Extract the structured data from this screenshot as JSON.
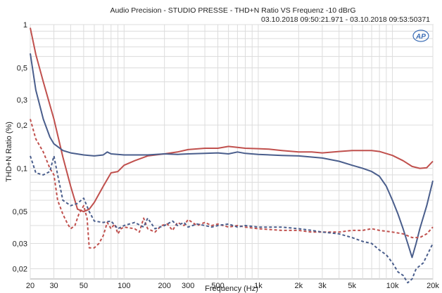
{
  "header": {
    "title": "Audio Precision - STUDIO PRESSE - THD+N Ratio VS Frequenz -10 dBrG",
    "timestamp": "03.10.2018 09:50:21.971 - 03.10.2018 09:53:50371"
  },
  "logo": "AP",
  "chart_data": {
    "type": "line",
    "title": "Audio Precision - STUDIO PRESSE - THD+N Ratio VS Frequenz -10 dBrG",
    "xlabel": "Frequency (Hz)",
    "ylabel": "THD+N Ratio (%)",
    "x_scale": "log",
    "y_scale": "log",
    "xlim": [
      20,
      20000
    ],
    "ylim": [
      0.017,
      1
    ],
    "x_ticks": [
      {
        "v": 20,
        "label": "20"
      },
      {
        "v": 30,
        "label": "30"
      },
      {
        "v": 50,
        "label": "50"
      },
      {
        "v": 100,
        "label": "100"
      },
      {
        "v": 200,
        "label": "200"
      },
      {
        "v": 300,
        "label": "300"
      },
      {
        "v": 500,
        "label": "500"
      },
      {
        "v": 1000,
        "label": "1k"
      },
      {
        "v": 2000,
        "label": "2k"
      },
      {
        "v": 3000,
        "label": "3k"
      },
      {
        "v": 5000,
        "label": "5k"
      },
      {
        "v": 10000,
        "label": "10k"
      },
      {
        "v": 20000,
        "label": "20k"
      }
    ],
    "y_ticks": [
      {
        "v": 1,
        "label": "1"
      },
      {
        "v": 0.5,
        "label": "0,5"
      },
      {
        "v": 0.3,
        "label": "0,3"
      },
      {
        "v": 0.2,
        "label": "0,2"
      },
      {
        "v": 0.1,
        "label": "0,1"
      },
      {
        "v": 0.05,
        "label": "0,05"
      },
      {
        "v": 0.03,
        "label": "0,03"
      },
      {
        "v": 0.02,
        "label": "0,02"
      }
    ],
    "grid": true,
    "series": [
      {
        "color": "#c0504d",
        "dash": "solid",
        "points": [
          [
            20,
            0.95
          ],
          [
            22,
            0.62
          ],
          [
            25,
            0.4
          ],
          [
            30,
            0.22
          ],
          [
            35,
            0.12
          ],
          [
            40,
            0.075
          ],
          [
            45,
            0.052
          ],
          [
            50,
            0.05
          ],
          [
            55,
            0.052
          ],
          [
            60,
            0.058
          ],
          [
            70,
            0.075
          ],
          [
            80,
            0.093
          ],
          [
            90,
            0.095
          ],
          [
            100,
            0.105
          ],
          [
            120,
            0.113
          ],
          [
            150,
            0.122
          ],
          [
            200,
            0.126
          ],
          [
            250,
            0.13
          ],
          [
            300,
            0.135
          ],
          [
            400,
            0.138
          ],
          [
            500,
            0.138
          ],
          [
            600,
            0.142
          ],
          [
            700,
            0.14
          ],
          [
            800,
            0.138
          ],
          [
            1000,
            0.137
          ],
          [
            1200,
            0.136
          ],
          [
            1500,
            0.133
          ],
          [
            2000,
            0.13
          ],
          [
            2500,
            0.13
          ],
          [
            3000,
            0.128
          ],
          [
            4000,
            0.131
          ],
          [
            5000,
            0.133
          ],
          [
            6000,
            0.133
          ],
          [
            7000,
            0.133
          ],
          [
            8000,
            0.131
          ],
          [
            10000,
            0.123
          ],
          [
            12000,
            0.113
          ],
          [
            14000,
            0.103
          ],
          [
            16000,
            0.1
          ],
          [
            18000,
            0.101
          ],
          [
            20000,
            0.112
          ]
        ]
      },
      {
        "color": "#4a5e8c",
        "dash": "solid",
        "points": [
          [
            20,
            0.63
          ],
          [
            22,
            0.35
          ],
          [
            25,
            0.22
          ],
          [
            28,
            0.165
          ],
          [
            30,
            0.148
          ],
          [
            35,
            0.133
          ],
          [
            40,
            0.128
          ],
          [
            50,
            0.124
          ],
          [
            60,
            0.122
          ],
          [
            70,
            0.124
          ],
          [
            75,
            0.13
          ],
          [
            80,
            0.126
          ],
          [
            100,
            0.124
          ],
          [
            150,
            0.124
          ],
          [
            200,
            0.126
          ],
          [
            250,
            0.125
          ],
          [
            300,
            0.126
          ],
          [
            400,
            0.127
          ],
          [
            500,
            0.128
          ],
          [
            600,
            0.126
          ],
          [
            700,
            0.13
          ],
          [
            800,
            0.127
          ],
          [
            1000,
            0.125
          ],
          [
            1500,
            0.123
          ],
          [
            2000,
            0.122
          ],
          [
            3000,
            0.118
          ],
          [
            4000,
            0.112
          ],
          [
            5000,
            0.105
          ],
          [
            6000,
            0.1
          ],
          [
            7000,
            0.095
          ],
          [
            8000,
            0.088
          ],
          [
            9000,
            0.075
          ],
          [
            10000,
            0.06
          ],
          [
            11000,
            0.048
          ],
          [
            12000,
            0.038
          ],
          [
            13000,
            0.03
          ],
          [
            14000,
            0.024
          ],
          [
            15000,
            0.03
          ],
          [
            16000,
            0.038
          ],
          [
            18000,
            0.055
          ],
          [
            20000,
            0.082
          ]
        ]
      },
      {
        "color": "#c0504d",
        "dash": "dashed",
        "points": [
          [
            20,
            0.22
          ],
          [
            22,
            0.16
          ],
          [
            25,
            0.13
          ],
          [
            28,
            0.1
          ],
          [
            30,
            0.09
          ],
          [
            32,
            0.06
          ],
          [
            35,
            0.048
          ],
          [
            38,
            0.041
          ],
          [
            40,
            0.038
          ],
          [
            43,
            0.04
          ],
          [
            46,
            0.048
          ],
          [
            50,
            0.055
          ],
          [
            53,
            0.045
          ],
          [
            55,
            0.028
          ],
          [
            60,
            0.028
          ],
          [
            65,
            0.03
          ],
          [
            70,
            0.034
          ],
          [
            75,
            0.042
          ],
          [
            80,
            0.038
          ],
          [
            85,
            0.041
          ],
          [
            90,
            0.035
          ],
          [
            95,
            0.038
          ],
          [
            100,
            0.039
          ],
          [
            120,
            0.038
          ],
          [
            130,
            0.036
          ],
          [
            140,
            0.045
          ],
          [
            150,
            0.038
          ],
          [
            170,
            0.036
          ],
          [
            190,
            0.04
          ],
          [
            210,
            0.041
          ],
          [
            230,
            0.037
          ],
          [
            250,
            0.042
          ],
          [
            280,
            0.04
          ],
          [
            300,
            0.044
          ],
          [
            350,
            0.04
          ],
          [
            400,
            0.042
          ],
          [
            450,
            0.04
          ],
          [
            500,
            0.041
          ],
          [
            600,
            0.039
          ],
          [
            700,
            0.04
          ],
          [
            800,
            0.039
          ],
          [
            1000,
            0.038
          ],
          [
            1500,
            0.037
          ],
          [
            2000,
            0.037
          ],
          [
            2500,
            0.036
          ],
          [
            3000,
            0.036
          ],
          [
            4000,
            0.036
          ],
          [
            5000,
            0.037
          ],
          [
            6000,
            0.037
          ],
          [
            7000,
            0.038
          ],
          [
            8000,
            0.037
          ],
          [
            10000,
            0.036
          ],
          [
            12000,
            0.035
          ],
          [
            14000,
            0.033
          ],
          [
            16000,
            0.033
          ],
          [
            18000,
            0.035
          ],
          [
            20000,
            0.039
          ]
        ]
      },
      {
        "color": "#4a5e8c",
        "dash": "dashed",
        "points": [
          [
            20,
            0.122
          ],
          [
            22,
            0.093
          ],
          [
            25,
            0.09
          ],
          [
            28,
            0.095
          ],
          [
            30,
            0.122
          ],
          [
            32,
            0.09
          ],
          [
            35,
            0.06
          ],
          [
            40,
            0.055
          ],
          [
            45,
            0.057
          ],
          [
            50,
            0.062
          ],
          [
            55,
            0.05
          ],
          [
            60,
            0.043
          ],
          [
            70,
            0.042
          ],
          [
            80,
            0.043
          ],
          [
            90,
            0.038
          ],
          [
            100,
            0.04
          ],
          [
            120,
            0.042
          ],
          [
            140,
            0.039
          ],
          [
            150,
            0.045
          ],
          [
            170,
            0.038
          ],
          [
            200,
            0.04
          ],
          [
            230,
            0.043
          ],
          [
            250,
            0.04
          ],
          [
            280,
            0.042
          ],
          [
            300,
            0.039
          ],
          [
            350,
            0.041
          ],
          [
            400,
            0.04
          ],
          [
            450,
            0.039
          ],
          [
            500,
            0.04
          ],
          [
            600,
            0.041
          ],
          [
            700,
            0.039
          ],
          [
            800,
            0.04
          ],
          [
            1000,
            0.039
          ],
          [
            1500,
            0.039
          ],
          [
            2000,
            0.038
          ],
          [
            2500,
            0.037
          ],
          [
            3000,
            0.036
          ],
          [
            4000,
            0.035
          ],
          [
            5000,
            0.033
          ],
          [
            6000,
            0.031
          ],
          [
            7000,
            0.03
          ],
          [
            8000,
            0.027
          ],
          [
            9000,
            0.025
          ],
          [
            10000,
            0.022
          ],
          [
            11000,
            0.019
          ],
          [
            12000,
            0.018
          ],
          [
            13000,
            0.016
          ],
          [
            14000,
            0.017
          ],
          [
            15000,
            0.02
          ],
          [
            17000,
            0.022
          ],
          [
            20000,
            0.03
          ]
        ]
      }
    ]
  }
}
